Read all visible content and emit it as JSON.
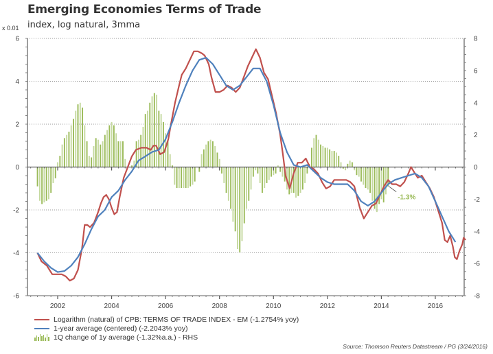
{
  "chart_data": {
    "type": "line+bar",
    "title": "Emerging Economies Terms of Trade",
    "subtitle": "index, log natural, 3mma",
    "left_axis_unit": "x 0.01",
    "xlabel": "",
    "x_ticks": [
      "2002",
      "2004",
      "2006",
      "2008",
      "2010",
      "2012",
      "2014",
      "2016"
    ],
    "xlim": [
      2000.88,
      2017.07
    ],
    "left_axis": {
      "ylim": [
        -6,
        6
      ],
      "ticks": [
        "6",
        "4",
        "2",
        "0",
        "-2",
        "-4",
        "-6"
      ]
    },
    "right_axis": {
      "ylim": [
        -8,
        8
      ],
      "ticks": [
        "8",
        "6",
        "4",
        "2",
        "0",
        "-2",
        "-4",
        "-6",
        "-8"
      ]
    },
    "grid": "horizontal dotted",
    "legend_position": "bottom",
    "series": [
      {
        "name": "Logarithm (natural) of CPB: TERMS OF TRADE INDEX - EM (-1.2754% yoy)",
        "type": "line",
        "axis": "left",
        "color": "#c0504d",
        "points": [
          [
            2001.25,
            -4.0
          ],
          [
            2001.4,
            -4.4
          ],
          [
            2001.6,
            -4.6
          ],
          [
            2001.8,
            -5.0
          ],
          [
            2002.0,
            -5.0
          ],
          [
            2002.15,
            -5.0
          ],
          [
            2002.3,
            -5.1
          ],
          [
            2002.45,
            -5.3
          ],
          [
            2002.6,
            -5.2
          ],
          [
            2002.75,
            -4.8
          ],
          [
            2002.9,
            -3.8
          ],
          [
            2003.0,
            -2.7
          ],
          [
            2003.1,
            -2.7
          ],
          [
            2003.2,
            -2.8
          ],
          [
            2003.35,
            -2.6
          ],
          [
            2003.5,
            -2.1
          ],
          [
            2003.6,
            -1.7
          ],
          [
            2003.7,
            -1.4
          ],
          [
            2003.8,
            -1.3
          ],
          [
            2003.9,
            -1.5
          ],
          [
            2004.0,
            -1.9
          ],
          [
            2004.1,
            -2.2
          ],
          [
            2004.2,
            -2.1
          ],
          [
            2004.3,
            -1.4
          ],
          [
            2004.45,
            -0.5
          ],
          [
            2004.6,
            0.0
          ],
          [
            2004.75,
            0.5
          ],
          [
            2004.9,
            0.8
          ],
          [
            2005.1,
            0.9
          ],
          [
            2005.3,
            0.9
          ],
          [
            2005.45,
            0.8
          ],
          [
            2005.55,
            1.0
          ],
          [
            2005.65,
            1.0
          ],
          [
            2005.8,
            0.6
          ],
          [
            2005.95,
            0.7
          ],
          [
            2006.1,
            1.3
          ],
          [
            2006.2,
            2.0
          ],
          [
            2006.35,
            3.0
          ],
          [
            2006.5,
            3.8
          ],
          [
            2006.6,
            4.3
          ],
          [
            2006.75,
            4.6
          ],
          [
            2006.9,
            5.0
          ],
          [
            2007.05,
            5.4
          ],
          [
            2007.2,
            5.4
          ],
          [
            2007.35,
            5.3
          ],
          [
            2007.45,
            5.2
          ],
          [
            2007.6,
            4.8
          ],
          [
            2007.7,
            4.2
          ],
          [
            2007.85,
            3.5
          ],
          [
            2008.0,
            3.5
          ],
          [
            2008.15,
            3.6
          ],
          [
            2008.3,
            3.8
          ],
          [
            2008.45,
            3.7
          ],
          [
            2008.6,
            3.5
          ],
          [
            2008.75,
            3.7
          ],
          [
            2008.9,
            4.2
          ],
          [
            2009.05,
            4.7
          ],
          [
            2009.2,
            5.1
          ],
          [
            2009.35,
            5.5
          ],
          [
            2009.5,
            5.1
          ],
          [
            2009.65,
            4.4
          ],
          [
            2009.8,
            4.1
          ],
          [
            2009.95,
            3.3
          ],
          [
            2010.1,
            2.5
          ],
          [
            2010.25,
            1.5
          ],
          [
            2010.35,
            0.6
          ],
          [
            2010.45,
            -0.4
          ],
          [
            2010.6,
            -1.0
          ],
          [
            2010.75,
            -0.3
          ],
          [
            2010.9,
            0.2
          ],
          [
            2011.05,
            0.2
          ],
          [
            2011.2,
            0.4
          ],
          [
            2011.35,
            0.0
          ],
          [
            2011.5,
            -0.1
          ],
          [
            2011.65,
            -0.3
          ],
          [
            2011.8,
            -0.7
          ],
          [
            2011.95,
            -1.0
          ],
          [
            2012.1,
            -0.9
          ],
          [
            2012.25,
            -0.6
          ],
          [
            2012.4,
            -0.6
          ],
          [
            2012.55,
            -0.6
          ],
          [
            2012.7,
            -0.6
          ],
          [
            2012.85,
            -0.7
          ],
          [
            2013.0,
            -0.9
          ],
          [
            2013.1,
            -1.4
          ],
          [
            2013.2,
            -1.9
          ],
          [
            2013.35,
            -2.4
          ],
          [
            2013.5,
            -2.1
          ],
          [
            2013.65,
            -1.8
          ],
          [
            2013.8,
            -1.7
          ],
          [
            2013.95,
            -1.3
          ],
          [
            2014.1,
            -0.9
          ],
          [
            2014.25,
            -0.6
          ],
          [
            2014.4,
            -0.8
          ],
          [
            2014.55,
            -0.8
          ],
          [
            2014.7,
            -0.9
          ],
          [
            2014.85,
            -0.7
          ],
          [
            2015.0,
            -0.3
          ],
          [
            2015.1,
            0.0
          ],
          [
            2015.25,
            -0.3
          ],
          [
            2015.35,
            -0.5
          ],
          [
            2015.5,
            -0.4
          ],
          [
            2015.65,
            -0.7
          ],
          [
            2015.8,
            -1.0
          ],
          [
            2015.95,
            -1.4
          ],
          [
            2016.1,
            -2.0
          ],
          [
            2016.25,
            -2.6
          ],
          [
            2016.35,
            -3.4
          ],
          [
            2016.45,
            -3.5
          ],
          [
            2016.55,
            -3.2
          ],
          [
            2016.65,
            -3.7
          ],
          [
            2016.72,
            -4.2
          ],
          [
            2016.8,
            -4.3
          ],
          [
            2016.9,
            -3.9
          ],
          [
            2017.0,
            -3.6
          ],
          [
            2017.05,
            -3.3
          ],
          [
            2017.12,
            -3.4
          ]
        ]
      },
      {
        "name": "1-year average (centered)  (-2.2043% yoy)",
        "type": "line",
        "axis": "left",
        "color": "#4f81bd",
        "points": [
          [
            2001.25,
            -4.0
          ],
          [
            2001.5,
            -4.4
          ],
          [
            2001.75,
            -4.7
          ],
          [
            2002.0,
            -4.9
          ],
          [
            2002.25,
            -4.85
          ],
          [
            2002.5,
            -4.6
          ],
          [
            2002.75,
            -4.2
          ],
          [
            2003.0,
            -3.6
          ],
          [
            2003.25,
            -2.9
          ],
          [
            2003.5,
            -2.3
          ],
          [
            2003.75,
            -2.0
          ],
          [
            2004.0,
            -1.4
          ],
          [
            2004.25,
            -1.1
          ],
          [
            2004.5,
            -0.6
          ],
          [
            2004.75,
            -0.2
          ],
          [
            2005.0,
            0.3
          ],
          [
            2005.25,
            0.5
          ],
          [
            2005.5,
            0.7
          ],
          [
            2005.75,
            0.8
          ],
          [
            2006.0,
            1.3
          ],
          [
            2006.25,
            2.1
          ],
          [
            2006.5,
            3.0
          ],
          [
            2006.75,
            3.8
          ],
          [
            2007.0,
            4.5
          ],
          [
            2007.25,
            5.0
          ],
          [
            2007.5,
            5.1
          ],
          [
            2007.75,
            4.8
          ],
          [
            2008.0,
            4.3
          ],
          [
            2008.25,
            3.8
          ],
          [
            2008.5,
            3.6
          ],
          [
            2008.75,
            3.8
          ],
          [
            2009.0,
            4.2
          ],
          [
            2009.25,
            4.6
          ],
          [
            2009.5,
            4.6
          ],
          [
            2009.75,
            4.0
          ],
          [
            2010.0,
            2.9
          ],
          [
            2010.25,
            1.6
          ],
          [
            2010.5,
            0.7
          ],
          [
            2010.75,
            0.1
          ],
          [
            2011.0,
            0.0
          ],
          [
            2011.25,
            0.1
          ],
          [
            2011.5,
            -0.2
          ],
          [
            2011.75,
            -0.5
          ],
          [
            2012.0,
            -0.7
          ],
          [
            2012.25,
            -0.8
          ],
          [
            2012.5,
            -0.8
          ],
          [
            2012.75,
            -0.8
          ],
          [
            2013.0,
            -1.1
          ],
          [
            2013.25,
            -1.6
          ],
          [
            2013.5,
            -1.8
          ],
          [
            2013.75,
            -1.6
          ],
          [
            2014.0,
            -1.2
          ],
          [
            2014.25,
            -0.8
          ],
          [
            2014.5,
            -0.6
          ],
          [
            2014.75,
            -0.5
          ],
          [
            2015.0,
            -0.4
          ],
          [
            2015.25,
            -0.3
          ],
          [
            2015.5,
            -0.5
          ],
          [
            2015.75,
            -0.9
          ],
          [
            2016.0,
            -1.6
          ],
          [
            2016.25,
            -2.3
          ],
          [
            2016.5,
            -3.0
          ],
          [
            2016.75,
            -3.5
          ]
        ]
      },
      {
        "name": "1Q change of 1y average  (-1.32%a.a.) - RHS",
        "type": "bar",
        "axis": "right",
        "color": "#9bbb59",
        "start": 2001.25,
        "step_months": 1,
        "values": [
          -1.2,
          -2.1,
          -2.3,
          -2.2,
          -2.1,
          -2.0,
          -1.6,
          -1.0,
          -0.7,
          0.3,
          0.7,
          1.4,
          1.8,
          2.0,
          2.2,
          2.6,
          3.0,
          3.5,
          3.9,
          4.0,
          3.7,
          2.6,
          1.6,
          0.7,
          0.6,
          1.3,
          1.8,
          1.7,
          1.4,
          1.6,
          2.0,
          2.3,
          2.6,
          2.8,
          2.6,
          2.1,
          1.6,
          1.6,
          1.6,
          0.5,
          0.0,
          0.0,
          0.1,
          0.4,
          1.6,
          1.7,
          2.0,
          2.5,
          3.3,
          3.5,
          4.0,
          4.4,
          4.6,
          4.5,
          3.5,
          3.3,
          2.8,
          2.1,
          1.6,
          0.8,
          0.1,
          -1.1,
          -1.3,
          -1.3,
          -1.3,
          -1.3,
          -1.3,
          -1.3,
          -1.2,
          -1.1,
          -0.9,
          0.0,
          -0.3,
          0.8,
          1.1,
          1.4,
          1.6,
          1.7,
          1.6,
          1.3,
          0.9,
          0.5,
          -0.4,
          -1.0,
          -1.6,
          -2.1,
          -2.6,
          -3.4,
          -4.0,
          -5.1,
          -5.3,
          -4.6,
          -3.5,
          -2.6,
          -2.1,
          -1.4,
          -0.6,
          -0.2,
          -0.4,
          -1.0,
          -1.6,
          -1.3,
          -1.0,
          -0.8,
          -0.6,
          -0.5,
          -0.4,
          0.1,
          -0.3,
          -0.6,
          -0.9,
          -1.4,
          -1.7,
          -1.6,
          -1.6,
          -1.9,
          -1.8,
          -1.6,
          -1.4,
          -1.0,
          -0.4,
          0.2,
          1.2,
          1.8,
          2.0,
          1.7,
          1.4,
          1.3,
          1.2,
          1.2,
          1.1,
          1.0,
          1.0,
          0.9,
          0.7,
          0.3,
          -0.1,
          -0.2,
          0.2,
          0.4,
          0.3,
          -0.2,
          -0.5,
          -0.6,
          -0.9,
          -1.1,
          -1.3,
          -1.4,
          -1.6,
          -2.1,
          -2.6,
          -2.8,
          -2.3,
          -2.0,
          -2.2,
          -1.7,
          -1.2
        ]
      }
    ],
    "annotations": [
      {
        "text": "-1.3%",
        "color": "#9bbb59",
        "series": "1Q change of 1y average"
      }
    ],
    "source": "Source: Thomson Reuters Datastream / PG (3/24/2016)"
  }
}
